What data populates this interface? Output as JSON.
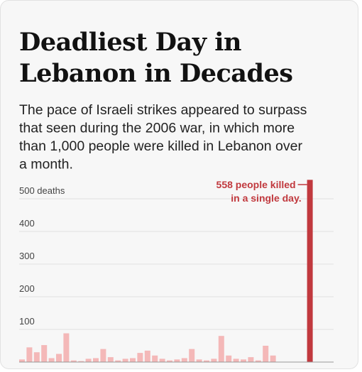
{
  "chart_data": {
    "type": "bar",
    "title": [
      "Deadliest Day in",
      "Lebanon in Decades"
    ],
    "subtitle": [
      "The pace of Israeli strikes appeared to surpass",
      "that seen during the 2006 war, in which more",
      "than 1,000 people were killed in Lebanon over",
      "a month."
    ],
    "annotation": [
      "558 people killed",
      "in a single day."
    ],
    "categories": [
      null,
      null,
      null,
      null,
      null,
      null,
      null,
      null,
      null,
      null,
      null,
      null,
      null,
      null,
      null,
      null,
      null,
      null,
      null,
      null,
      null,
      null,
      null,
      null,
      null,
      null,
      null,
      null,
      null,
      null,
      null,
      null,
      null,
      null,
      null,
      null,
      null,
      null,
      null,
      null
    ],
    "values": [
      8,
      45,
      30,
      52,
      12,
      25,
      88,
      5,
      3,
      10,
      12,
      40,
      15,
      5,
      10,
      12,
      28,
      35,
      20,
      10,
      5,
      8,
      12,
      40,
      8,
      5,
      10,
      80,
      20,
      10,
      8,
      15,
      5,
      50,
      20,
      0,
      0,
      0,
      0,
      558
    ],
    "colors": [
      "#f4b8b8",
      "#f4b8b8",
      "#f4b8b8",
      "#f4b8b8",
      "#f4b8b8",
      "#f4b8b8",
      "#f4b8b8",
      "#f4b8b8",
      "#f4b8b8",
      "#f4b8b8",
      "#f4b8b8",
      "#f4b8b8",
      "#f4b8b8",
      "#f4b8b8",
      "#f4b8b8",
      "#f4b8b8",
      "#f4b8b8",
      "#f4b8b8",
      "#f4b8b8",
      "#f4b8b8",
      "#f4b8b8",
      "#f4b8b8",
      "#f4b8b8",
      "#f4b8b8",
      "#f4b8b8",
      "#f4b8b8",
      "#f4b8b8",
      "#f4b8b8",
      "#f4b8b8",
      "#f4b8b8",
      "#f4b8b8",
      "#f4b8b8",
      "#f4b8b8",
      "#f4b8b8",
      "#f4b8b8",
      "#f4b8b8",
      "#f4b8b8",
      "#f4b8b8",
      "#f4b8b8",
      "#c1393e"
    ],
    "annotation_color": "#c1393e",
    "ylim": [
      0,
      560
    ],
    "yticks": [
      {
        "value": 500,
        "label": "500 deaths"
      },
      400,
      300,
      200,
      100
    ],
    "grid": true
  }
}
